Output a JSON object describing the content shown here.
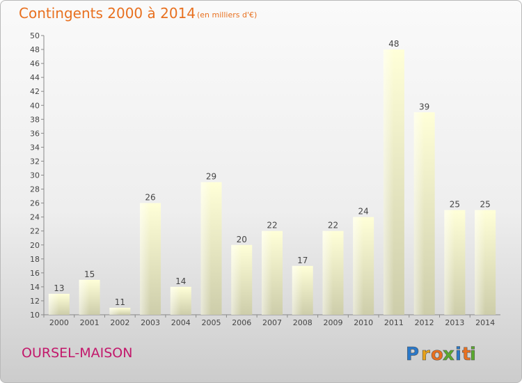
{
  "chart_data": {
    "type": "bar",
    "title": "Contingents 2000 à 2014",
    "subtitle": "(en milliers d'€)",
    "categories": [
      "2000",
      "2001",
      "2002",
      "2003",
      "2004",
      "2005",
      "2006",
      "2007",
      "2008",
      "2009",
      "2010",
      "2011",
      "2012",
      "2013",
      "2014"
    ],
    "values": [
      13,
      15,
      11,
      26,
      14,
      29,
      20,
      22,
      17,
      22,
      24,
      48,
      39,
      25,
      25
    ],
    "ylim": [
      10,
      50
    ],
    "ytick_step": 2,
    "yticks": [
      "10",
      "12",
      "14",
      "16",
      "18",
      "20",
      "22",
      "24",
      "26",
      "28",
      "30",
      "32",
      "34",
      "36",
      "38",
      "40",
      "42",
      "44",
      "46",
      "48",
      "50"
    ],
    "grid": false,
    "bar_color": "#f5f5c6"
  },
  "footer": {
    "commune": "OURSEL-MAISON"
  },
  "logo": {
    "text": "Proxiti",
    "letters": [
      "P",
      "r",
      "o",
      "x",
      "i",
      "t",
      "i"
    ],
    "colors": [
      "#2a78c8",
      "#e8a21a",
      "#e8701f",
      "#5aaa2e",
      "#2a78c8",
      "#e8701f",
      "#5aaa2e"
    ]
  }
}
